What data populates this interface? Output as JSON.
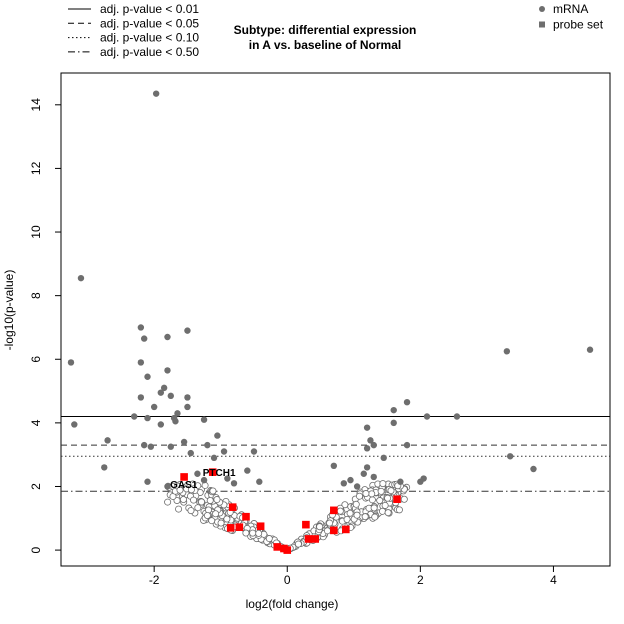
{
  "chart_data": {
    "type": "scatter",
    "title_lines": [
      "Subtype: differential expression",
      "in A vs. baseline of Normal"
    ],
    "xlabel": "log2(fold change)",
    "ylabel": "-log10(p-value)",
    "xlim": [
      -3.4,
      4.85
    ],
    "ylim": [
      -0.5,
      15.0
    ],
    "x_ticks": [
      -2,
      0,
      2,
      4
    ],
    "y_ticks": [
      0,
      2,
      4,
      6,
      8,
      10,
      12,
      14
    ],
    "grid": false,
    "threshold_legend": [
      {
        "label": "adj. p-value < 0.01",
        "style": "solid",
        "y": 4.2
      },
      {
        "label": "adj. p-value < 0.05",
        "style": "dashed",
        "y": 3.3
      },
      {
        "label": "adj. p-value < 0.10",
        "style": "dotted",
        "y": 2.95
      },
      {
        "label": "adj. p-value < 0.50",
        "style": "dotdash",
        "y": 1.85
      }
    ],
    "point_legend": [
      {
        "label": "mRNA",
        "marker": "circle"
      },
      {
        "label": "probe set",
        "marker": "square"
      }
    ],
    "colors": {
      "significant": "#6e6e6e",
      "outline": "#6e6e6e",
      "probe_set": "#ff0000"
    },
    "filled_points": [
      [
        -1.97,
        14.35
      ],
      [
        -3.1,
        8.55
      ],
      [
        -3.25,
        5.9
      ],
      [
        -3.2,
        3.95
      ],
      [
        -2.2,
        7.0
      ],
      [
        -2.15,
        6.65
      ],
      [
        -1.8,
        6.7
      ],
      [
        -1.5,
        6.9
      ],
      [
        -2.2,
        5.9
      ],
      [
        -2.1,
        5.45
      ],
      [
        -1.8,
        5.65
      ],
      [
        -1.85,
        5.1
      ],
      [
        -1.9,
        4.95
      ],
      [
        -1.75,
        4.85
      ],
      [
        -2.2,
        4.8
      ],
      [
        -1.5,
        4.8
      ],
      [
        -2.0,
        4.5
      ],
      [
        -1.5,
        4.5
      ],
      [
        -1.65,
        4.3
      ],
      [
        -2.3,
        4.2
      ],
      [
        -2.1,
        4.15
      ],
      [
        -1.7,
        4.15
      ],
      [
        -1.68,
        4.05
      ],
      [
        -1.9,
        3.95
      ],
      [
        -1.25,
        4.1
      ],
      [
        -1.05,
        3.6
      ],
      [
        -2.7,
        3.45
      ],
      [
        -2.15,
        3.3
      ],
      [
        -2.05,
        3.25
      ],
      [
        -1.75,
        3.25
      ],
      [
        -1.55,
        3.4
      ],
      [
        -1.45,
        3.05
      ],
      [
        -1.2,
        3.3
      ],
      [
        -0.95,
        3.1
      ],
      [
        -0.5,
        3.1
      ],
      [
        -1.1,
        2.9
      ],
      [
        -2.75,
        2.6
      ],
      [
        -1.35,
        2.4
      ],
      [
        -1.25,
        2.2
      ],
      [
        -0.9,
        2.25
      ],
      [
        -2.1,
        2.15
      ],
      [
        -0.8,
        2.1
      ],
      [
        -0.42,
        2.15
      ],
      [
        -0.6,
        2.5
      ],
      [
        -1.8,
        2.0
      ],
      [
        3.3,
        6.25
      ],
      [
        4.55,
        6.3
      ],
      [
        1.8,
        4.65
      ],
      [
        1.6,
        4.4
      ],
      [
        2.55,
        4.2
      ],
      [
        2.1,
        4.2
      ],
      [
        1.2,
        3.85
      ],
      [
        1.6,
        4.0
      ],
      [
        1.25,
        3.45
      ],
      [
        1.3,
        3.3
      ],
      [
        1.8,
        3.3
      ],
      [
        1.2,
        3.2
      ],
      [
        3.35,
        2.95
      ],
      [
        3.7,
        2.55
      ],
      [
        1.45,
        2.9
      ],
      [
        1.2,
        2.6
      ],
      [
        1.15,
        2.4
      ],
      [
        1.3,
        2.3
      ],
      [
        1.7,
        2.15
      ],
      [
        2.0,
        2.15
      ],
      [
        2.05,
        2.25
      ],
      [
        0.95,
        2.2
      ],
      [
        0.85,
        2.1
      ],
      [
        1.05,
        2.0
      ],
      [
        0.7,
        2.65
      ]
    ],
    "probe_set_points": [
      [
        -1.55,
        2.3
      ],
      [
        -1.12,
        2.45
      ],
      [
        -0.82,
        1.35
      ],
      [
        -0.62,
        1.05
      ],
      [
        -0.72,
        0.72
      ],
      [
        -0.85,
        0.7
      ],
      [
        -0.4,
        0.75
      ],
      [
        -0.15,
        0.1
      ],
      [
        -0.05,
        0.05
      ],
      [
        0.0,
        0.0
      ],
      [
        0.28,
        0.8
      ],
      [
        0.32,
        0.35
      ],
      [
        0.42,
        0.35
      ],
      [
        0.7,
        1.25
      ],
      [
        0.7,
        0.62
      ],
      [
        0.88,
        0.65
      ],
      [
        1.65,
        1.6
      ]
    ],
    "annotations": [
      {
        "text": "PTCH1",
        "x": -1.12,
        "y": 2.45
      },
      {
        "text": "GAS1",
        "x": -1.55,
        "y": 2.3
      }
    ],
    "open_points_note": "cloud"
  }
}
